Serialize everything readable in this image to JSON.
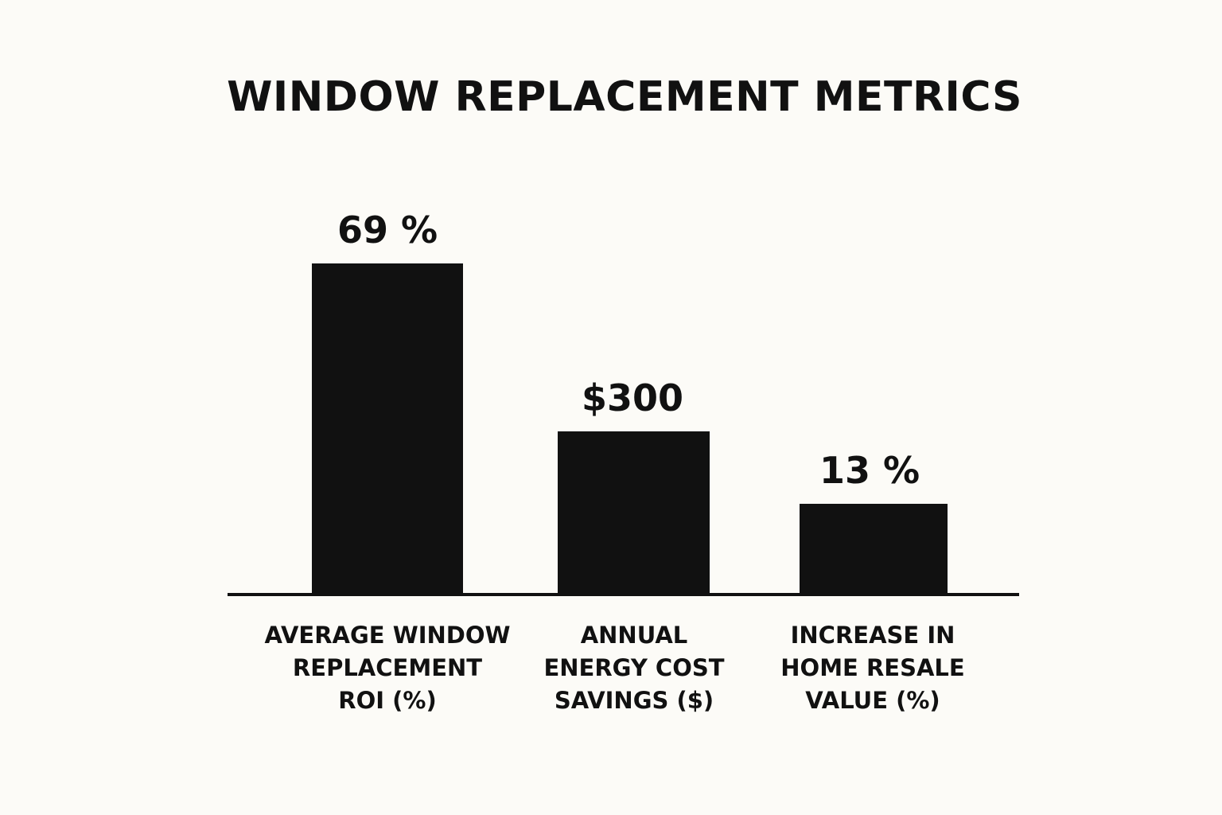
{
  "chart_data": {
    "type": "bar",
    "title": "WINDOW REPLACEMENT METRICS",
    "categories": [
      [
        "AVERAGE WINDOW",
        "REPLACEMENT",
        "ROI (%)"
      ],
      [
        "ANNUAL",
        "ENERGY COST",
        "SAVINGS ($)"
      ],
      [
        "INCREASE IN",
        "HOME RESALE",
        "VALUE (%)"
      ]
    ],
    "values": [
      69,
      300,
      13
    ],
    "value_labels": [
      "69 %",
      "$300",
      "13 %"
    ],
    "bar_color": "#111111",
    "background_color": "#fcfbf7",
    "grid": false,
    "legend": "none"
  }
}
